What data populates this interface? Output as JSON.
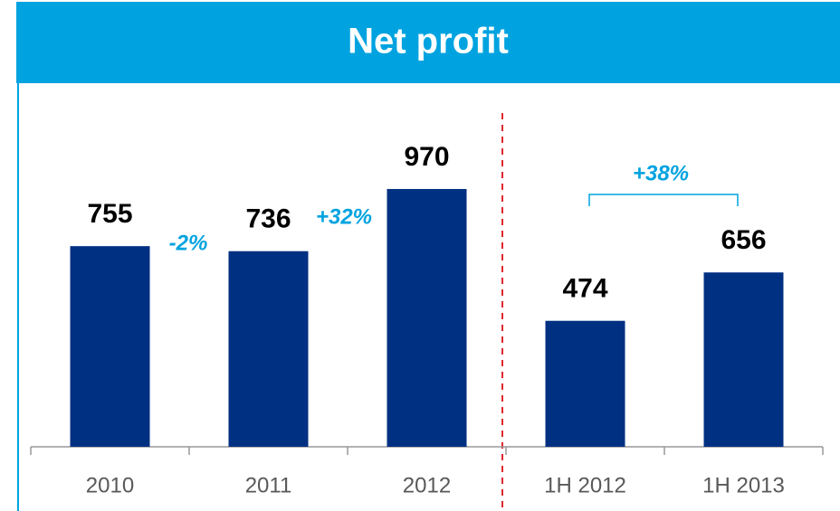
{
  "chart_data": {
    "type": "bar",
    "title": "Net profit",
    "categories": [
      "2010",
      "2011",
      "2012",
      "1H 2012",
      "1H 2013"
    ],
    "values": [
      755,
      736,
      970,
      474,
      656
    ],
    "color": "#003082",
    "ylim": [
      0,
      1300
    ],
    "annotations": [
      "-2%",
      "+32%",
      "+38%"
    ],
    "annotation_color": "#00a3e0"
  }
}
